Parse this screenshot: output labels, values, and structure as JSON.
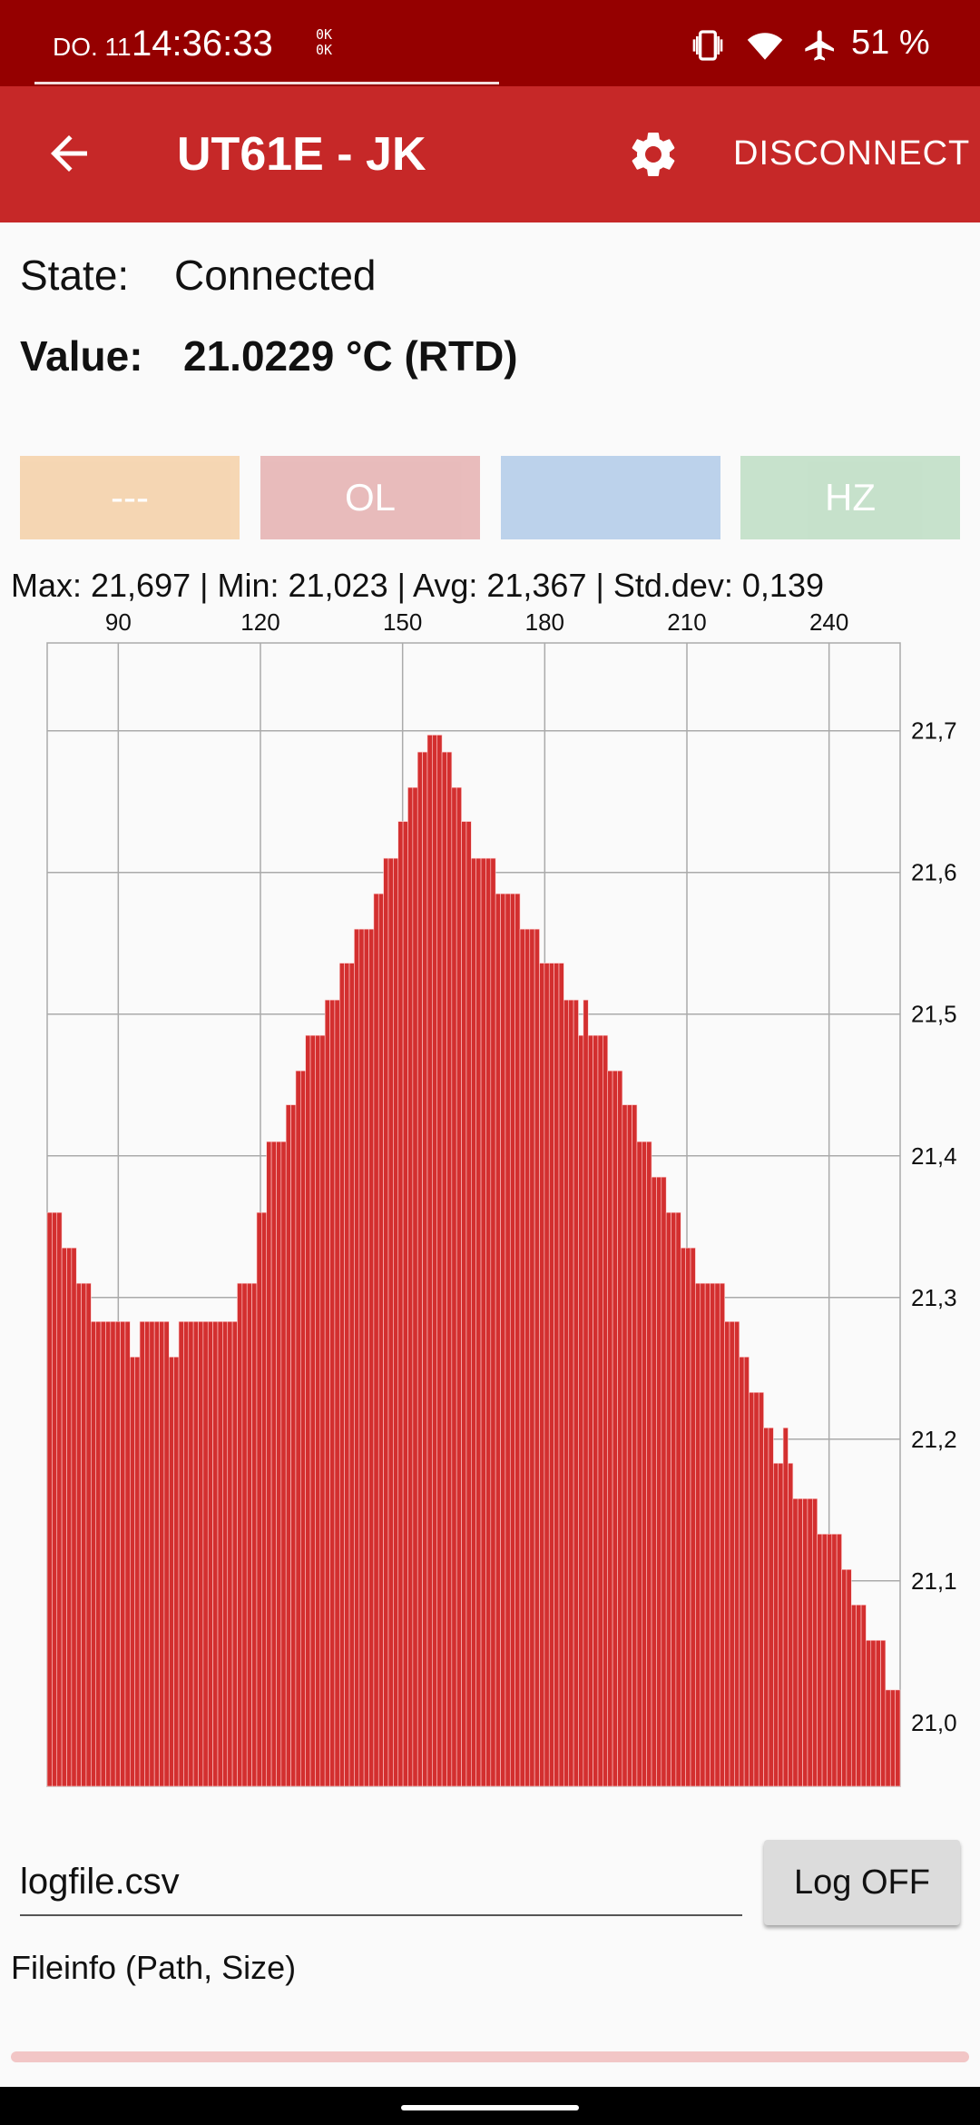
{
  "status_bar": {
    "date": "DO. 11",
    "time": "14:36:33",
    "ok_top": "0K",
    "ok_bottom": "0K",
    "battery": "51 %"
  },
  "app_bar": {
    "title": "UT61E -  JK",
    "disconnect_label": "DISCONNECT"
  },
  "status": {
    "state_label": "State:",
    "state_value": "Connected",
    "value_label": "Value:",
    "value_value": "21.0229 °C (RTD)"
  },
  "modes": [
    {
      "label": "---",
      "color": "#f5d5b0"
    },
    {
      "label": "OL",
      "color": "#e8b8b8"
    },
    {
      "label": "",
      "color": "#b8d0ea"
    },
    {
      "label": "HZ",
      "color": "#c4e0c9"
    }
  ],
  "stats_text": "Max: 21,697 | Min: 21,023 | Avg: 21,367 | Std.dev: 0,139",
  "chart_data": {
    "type": "bar",
    "x_ticks": [
      "90",
      "120",
      "150",
      "180",
      "210",
      "240"
    ],
    "y_ticks": [
      "21,7",
      "21,6",
      "21,5",
      "21,4",
      "21,3",
      "21,2",
      "21,1",
      "21,0"
    ],
    "x_range": [
      75,
      255
    ],
    "y_range": [
      20.955,
      21.762
    ],
    "bar_color": "#d32f2f",
    "x_start": 75,
    "values": [
      21.36,
      21.36,
      21.36,
      21.335,
      21.335,
      21.335,
      21.31,
      21.31,
      21.31,
      21.283,
      21.283,
      21.283,
      21.283,
      21.283,
      21.283,
      21.283,
      21.283,
      21.258,
      21.258,
      21.283,
      21.283,
      21.283,
      21.283,
      21.283,
      21.283,
      21.258,
      21.258,
      21.283,
      21.283,
      21.283,
      21.283,
      21.283,
      21.283,
      21.283,
      21.283,
      21.283,
      21.283,
      21.283,
      21.283,
      21.31,
      21.31,
      21.31,
      21.31,
      21.36,
      21.36,
      21.41,
      21.41,
      21.41,
      21.41,
      21.436,
      21.436,
      21.46,
      21.46,
      21.485,
      21.485,
      21.485,
      21.485,
      21.51,
      21.51,
      21.51,
      21.536,
      21.536,
      21.536,
      21.56,
      21.56,
      21.56,
      21.56,
      21.585,
      21.585,
      21.61,
      21.61,
      21.61,
      21.636,
      21.636,
      21.66,
      21.66,
      21.685,
      21.685,
      21.697,
      21.697,
      21.697,
      21.685,
      21.685,
      21.66,
      21.66,
      21.636,
      21.636,
      21.61,
      21.61,
      21.61,
      21.61,
      21.61,
      21.585,
      21.585,
      21.585,
      21.585,
      21.585,
      21.56,
      21.56,
      21.56,
      21.56,
      21.536,
      21.536,
      21.536,
      21.536,
      21.536,
      21.51,
      21.51,
      21.51,
      21.485,
      21.51,
      21.485,
      21.485,
      21.485,
      21.485,
      21.46,
      21.46,
      21.46,
      21.436,
      21.436,
      21.436,
      21.41,
      21.41,
      21.41,
      21.385,
      21.385,
      21.385,
      21.36,
      21.36,
      21.36,
      21.335,
      21.335,
      21.335,
      21.31,
      21.31,
      21.31,
      21.31,
      21.31,
      21.31,
      21.283,
      21.283,
      21.283,
      21.258,
      21.258,
      21.233,
      21.233,
      21.233,
      21.208,
      21.208,
      21.183,
      21.183,
      21.208,
      21.183,
      21.158,
      21.158,
      21.158,
      21.158,
      21.158,
      21.133,
      21.133,
      21.133,
      21.133,
      21.133,
      21.108,
      21.108,
      21.083,
      21.083,
      21.083,
      21.058,
      21.058,
      21.058,
      21.058,
      21.023,
      21.023,
      21.023
    ]
  },
  "log": {
    "filename": "logfile.csv",
    "button_label": "Log OFF",
    "fileinfo": "Fileinfo (Path, Size)",
    "progress": 0.0
  }
}
